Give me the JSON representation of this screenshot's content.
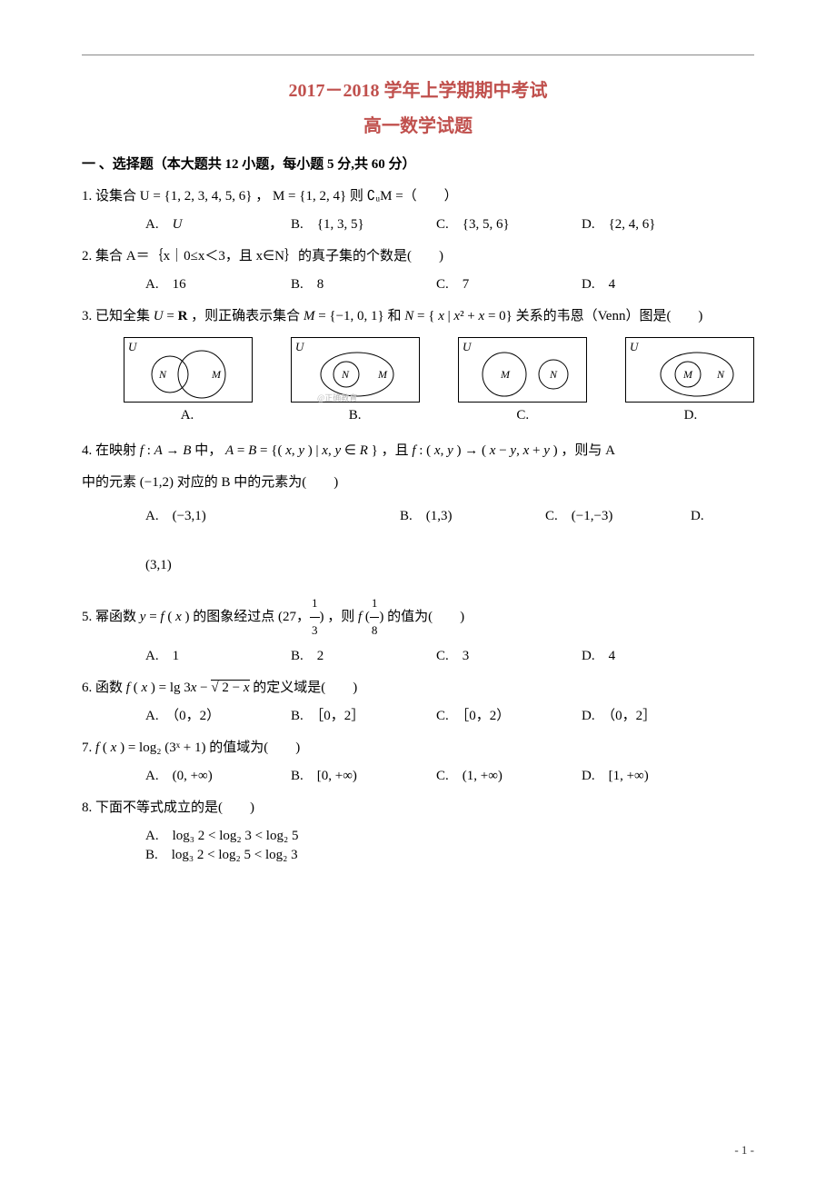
{
  "header": {
    "title": "2017－2018 学年上学期期中考试",
    "subtitle": "高一数学试题"
  },
  "section_heading": "一 、选择题（本大题共 12 小题，每小题 5 分,共 60 分）",
  "q1": {
    "stem_pre": "1. 设集合 ",
    "stem_math": "U = {1, 2, 3, 4, 5, 6} ， M = {1, 2, 4} 则 ∁ᵤM =（　　）",
    "A_html": "<i class='m'>U</i>",
    "B": "{1, 3, 5}",
    "C": "{3, 5, 6}",
    "D": "{2, 4, 6}"
  },
  "q2": {
    "stem": "2. 集合 A＝｛x｜0≤x＜3，且 x∈N｝的真子集的个数是(　　)",
    "A": "16",
    "B": "8",
    "C": "7",
    "D": "4"
  },
  "q3": {
    "stem_html": "3. 已知全集 <i class='m'>U</i> = <b>R</b> ，则正确表示集合 <i class='m'>M</i> = {−1, 0, 1} 和 <i class='m'>N</i> = { <i class='m'>x</i> | <i class='m'>x</i>² + <i class='m'>x</i> = 0} 关系的韦恩（Venn）图是(　　)",
    "labels": {
      "A": "A.",
      "B": "B.",
      "C": "C.",
      "D": "D."
    },
    "u_label": "U",
    "watermark": "@正确教育"
  },
  "q4": {
    "stem_html": "4. 在映射 <i class='m'>f</i> : <i class='m'>A</i> → <i class='m'>B</i> 中， <i class='m'>A</i> = <i class='m'>B</i> = {( <i class='m'>x</i>, <i class='m'>y</i> ) | <i class='m'>x</i>, <i class='m'>y</i> ∈ <i class='m'>R</i> } ，且 <i class='m'>f</i> : ( <i class='m'>x</i>, <i class='m'>y</i> ) → ( <i class='m'>x</i> − <i class='m'>y</i>, <i class='m'>x</i> + <i class='m'>y</i> ) ，则与 A",
    "stem2": "中的元素 (−1,2) 对应的 B 中的元素为(　　)",
    "A": "(−3,1)",
    "B": "(1,3)",
    "C": "(−1,−3)",
    "D": "(3,1)"
  },
  "q5": {
    "stem_html": "5. 幂函数 <i class='m'>y</i> = <i class='m'>f</i> ( <i class='m'>x</i> ) 的图象经过点 (27，<span style='display:inline-block;vertical-align:middle;text-align:center;font-size:13px;'><span style='display:block;border-bottom:1px solid #000;padding:0 2px;'>1</span><span style='display:block;'>3</span></span>) ，则 <i class='m'>f</i> (<span style='display:inline-block;vertical-align:middle;text-align:center;font-size:13px;'><span style='display:block;border-bottom:1px solid #000;padding:0 2px;'>1</span><span style='display:block;'>8</span></span>) 的值为(　　)",
    "A": "1",
    "B": "2",
    "C": "3",
    "D": "4"
  },
  "q6": {
    "stem_html": "6. 函数 <i class='m'>f</i> ( <i class='m'>x</i> ) = lg 3<i class='m'>x</i> − <span style='border-top:1px solid #000;'>√ 2 − <i class='m'>x</i></span> 的定义域是(　　)",
    "A": "（0，2）",
    "B": "［0，2］",
    "C": "［0，2）",
    "D": "（0，2］"
  },
  "q7": {
    "stem_html": "7. <i class='m'>f</i> ( <i class='m'>x</i> ) = log₂ (3ˣ + 1) 的值域为(　　)",
    "A": "(0, +∞)",
    "B": "[0, +∞)",
    "C": "(1, +∞)",
    "D": "[1, +∞)"
  },
  "q8": {
    "stem": "8. 下面不等式成立的是(　　)",
    "A": "log₃ 2 < log₂ 3 < log₂ 5",
    "B": "log₃ 2 < log₂ 5 < log₂ 3"
  },
  "pagenum": "- 1 -"
}
